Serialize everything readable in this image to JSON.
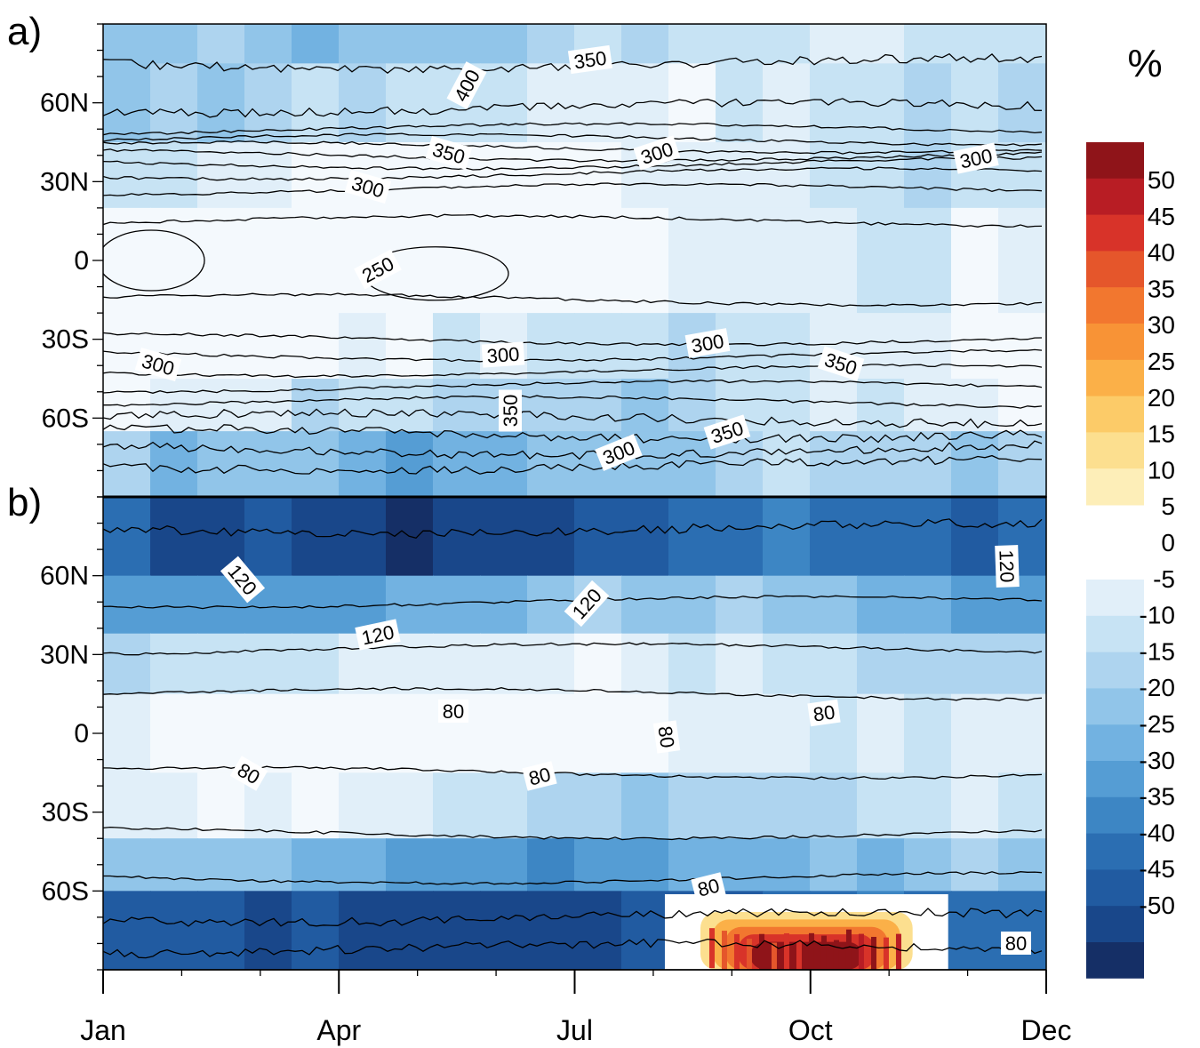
{
  "chart_data": {
    "type": "heatmap",
    "x_axis": {
      "tick_labels": [
        "Jan",
        "Apr",
        "Jul",
        "Oct",
        "Dec"
      ],
      "month_positions": [
        1,
        4,
        7,
        10,
        13
      ]
    },
    "y_axis": {
      "tick_labels": [
        "60N",
        "30N",
        "0",
        "30S",
        "60S"
      ],
      "tick_latitudes": [
        60,
        30,
        0,
        -30,
        -60
      ],
      "range": [
        90,
        -90
      ]
    },
    "colorbar": {
      "unit_label": "%",
      "tick_labels": [
        "50",
        "45",
        "40",
        "35",
        "30",
        "25",
        "20",
        "15",
        "10",
        "5",
        "0",
        "-5",
        "-10",
        "-15",
        "-20",
        "-25",
        "-30",
        "-35",
        "-40",
        "-45",
        "-50"
      ],
      "positive_colors": [
        "#fdf7e3",
        "#fdeeb8",
        "#fcdf8f",
        "#fccb68",
        "#fbb048",
        "#f89336",
        "#f2772f",
        "#e5562b",
        "#d83329",
        "#b81d24",
        "#8f1419"
      ],
      "negative_colors": [
        "#f4f9fd",
        "#e1eff9",
        "#c7e3f4",
        "#aed4ef",
        "#91c5e9",
        "#72b2e1",
        "#559dd4",
        "#3d86c4",
        "#2b6eb2",
        "#215ba1",
        "#19478a",
        "#152f66"
      ]
    },
    "panels": [
      {
        "label": "a)",
        "contour_labels": [
          "350",
          "400",
          "350",
          "300",
          "300",
          "300",
          "250",
          "300",
          "300",
          "300",
          "350",
          "350",
          "350",
          "300"
        ],
        "shading_bands": [
          {
            "lat_from": 90,
            "lat_to": 75,
            "level": 3
          },
          {
            "lat_from": 75,
            "lat_to": 45,
            "level": 2
          },
          {
            "lat_from": 45,
            "lat_to": 20,
            "level": 1
          },
          {
            "lat_from": 20,
            "lat_to": -20,
            "level": 0
          },
          {
            "lat_from": -20,
            "lat_to": -45,
            "level": 1
          },
          {
            "lat_from": -45,
            "lat_to": -65,
            "level": 2
          },
          {
            "lat_from": -65,
            "lat_to": -90,
            "level": 4
          }
        ]
      },
      {
        "label": "b)",
        "contour_labels": [
          "120",
          "120",
          "120",
          "120",
          "80",
          "80",
          "80",
          "80",
          "80",
          "80",
          "80"
        ],
        "shading_bands": [
          {
            "lat_from": 90,
            "lat_to": 60,
            "level": 9
          },
          {
            "lat_from": 60,
            "lat_to": 38,
            "level": 5
          },
          {
            "lat_from": 38,
            "lat_to": 15,
            "level": 2
          },
          {
            "lat_from": 15,
            "lat_to": -15,
            "level": 0
          },
          {
            "lat_from": -15,
            "lat_to": -40,
            "level": 2
          },
          {
            "lat_from": -40,
            "lat_to": -60,
            "level": 5
          },
          {
            "lat_from": -60,
            "lat_to": -90,
            "level": 9
          }
        ],
        "positive_anomaly": {
          "month_from": 8.6,
          "month_to": 11.3,
          "lat_from": -68,
          "lat_to": -90,
          "peak_percent": 50
        }
      }
    ]
  }
}
